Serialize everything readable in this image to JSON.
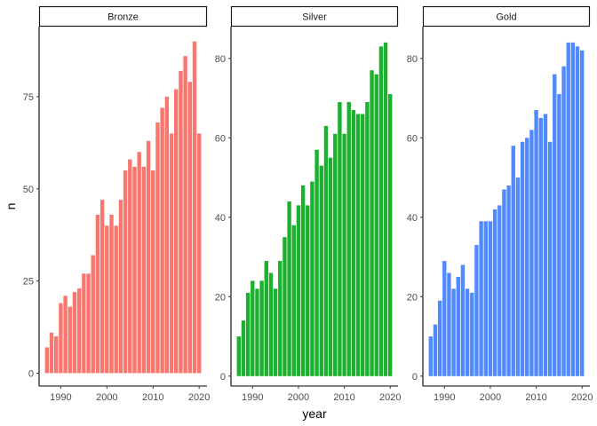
{
  "chart_data": {
    "type": "bar",
    "facet_by": "medal",
    "xlabel": "year",
    "ylabel": "n",
    "x_ticks": [
      1990,
      2000,
      2010,
      2020
    ],
    "grid": false,
    "legend": "none",
    "years": [
      1987,
      1988,
      1989,
      1990,
      1991,
      1992,
      1993,
      1994,
      1995,
      1996,
      1997,
      1998,
      1999,
      2000,
      2001,
      2002,
      2003,
      2004,
      2005,
      2006,
      2007,
      2008,
      2009,
      2010,
      2011,
      2012,
      2013,
      2014,
      2015,
      2016,
      2017,
      2018,
      2019,
      2020
    ],
    "panels": [
      {
        "strip": "Bronze",
        "color": "#F8766D",
        "ylim": [
          -3.5,
          94
        ],
        "y_ticks": [
          0,
          25,
          50,
          75
        ],
        "values": [
          7,
          11,
          10,
          19,
          21,
          18,
          22,
          23,
          27,
          27,
          32,
          43,
          47,
          40,
          43,
          40,
          47,
          55,
          58,
          56,
          60,
          56,
          63,
          55,
          68,
          72,
          75,
          65,
          77,
          82,
          86,
          79,
          90,
          65
        ]
      },
      {
        "strip": "Silver",
        "color": "#1BB02E",
        "ylim": [
          -2.5,
          88
        ],
        "y_ticks": [
          0,
          20,
          40,
          60,
          80
        ],
        "values": [
          10,
          14,
          21,
          24,
          22,
          24,
          29,
          26,
          22,
          29,
          35,
          44,
          38,
          43,
          48,
          43,
          49,
          57,
          53,
          63,
          55,
          61,
          69,
          61,
          69,
          67,
          66,
          66,
          69,
          77,
          76,
          83,
          84,
          71
        ]
      },
      {
        "strip": "Gold",
        "color": "#5189FF",
        "ylim": [
          -2.5,
          88
        ],
        "y_ticks": [
          0,
          20,
          40,
          60,
          80
        ],
        "values": [
          10,
          13,
          19,
          29,
          26,
          22,
          25,
          28,
          22,
          21,
          33,
          39,
          39,
          39,
          42,
          43,
          47,
          48,
          58,
          50,
          59,
          60,
          62,
          67,
          65,
          66,
          59,
          76,
          71,
          78,
          84,
          84,
          83,
          82
        ]
      }
    ]
  }
}
